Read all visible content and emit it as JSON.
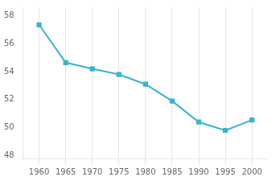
{
  "chart_data": {
    "type": "line",
    "x": [
      1960,
      1965,
      1970,
      1975,
      1980,
      1985,
      1990,
      1995,
      2000
    ],
    "values": [
      57.35,
      54.65,
      54.2,
      53.8,
      53.1,
      51.9,
      50.4,
      49.8,
      50.55
    ],
    "color": "#3ab4cc",
    "marker": "square",
    "line_style": "solid",
    "xlim": [
      1957,
      2003
    ],
    "ylim": [
      47.8,
      58.6
    ],
    "xticks": [
      1960,
      1965,
      1970,
      1975,
      1980,
      1985,
      1990,
      1995,
      2000
    ],
    "yticks": [
      48,
      50,
      52,
      54,
      56,
      58
    ],
    "grid": "x"
  }
}
